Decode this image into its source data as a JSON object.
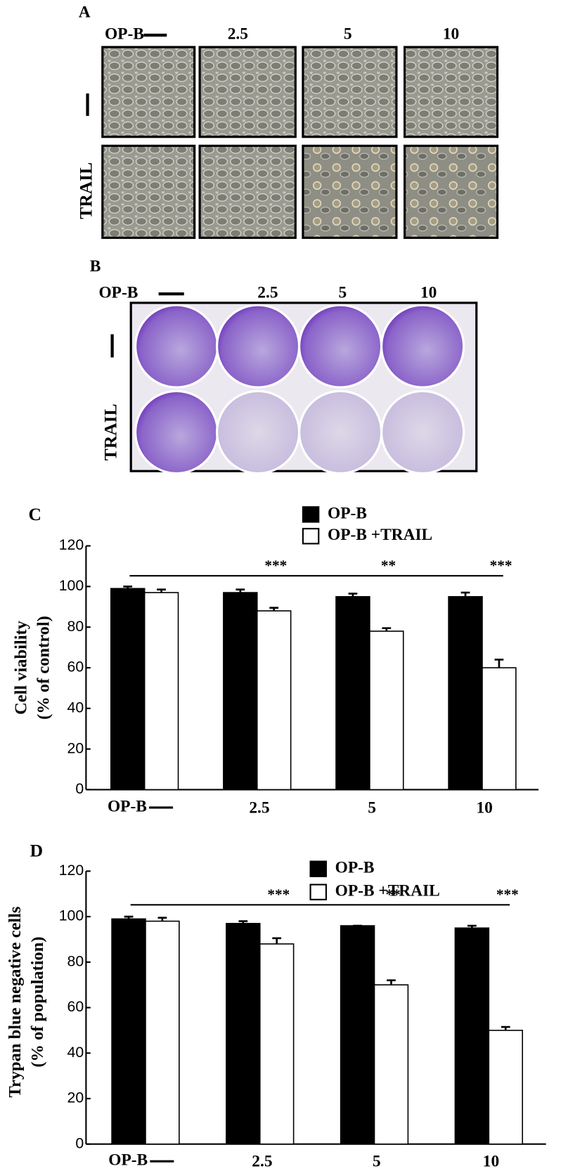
{
  "panel_a": {
    "label": "A",
    "treatment": "OP-B",
    "doses": [
      "2.5",
      "5",
      "10"
    ],
    "row_label": "TRAIL"
  },
  "panel_b": {
    "label": "B",
    "treatment": "OP-B",
    "doses": [
      "2.5",
      "5",
      "10"
    ],
    "row_label": "TRAIL"
  },
  "chart_data": [
    {
      "type": "bar",
      "label": "C",
      "ylabel": [
        "Cell viability",
        "(% of control)"
      ],
      "xlabel": "OP-B",
      "categories": [
        null,
        "2.5",
        "5",
        "10"
      ],
      "series": [
        {
          "name": "OP-B",
          "color": "#000000",
          "values": [
            99,
            97,
            95,
            95
          ],
          "errors": [
            1,
            1.5,
            1.5,
            2
          ]
        },
        {
          "name": "OP-B +TRAIL",
          "color": "#ffffff",
          "values": [
            97,
            88,
            78,
            60
          ],
          "errors": [
            1.5,
            1.5,
            1.5,
            4
          ]
        }
      ],
      "significance": [
        null,
        "***",
        "**",
        "***"
      ],
      "ylim": [
        0,
        120
      ],
      "yticks": [
        0,
        20,
        40,
        60,
        80,
        100,
        120
      ],
      "grid": false
    },
    {
      "type": "bar",
      "label": "D",
      "ylabel": [
        "Trypan blue negative cells",
        "(% of population)"
      ],
      "xlabel": "OP-B",
      "categories": [
        null,
        "2.5",
        "5",
        "10"
      ],
      "series": [
        {
          "name": "OP-B",
          "color": "#000000",
          "values": [
            99,
            97,
            96,
            95
          ],
          "errors": [
            1,
            1,
            0,
            1
          ]
        },
        {
          "name": "OP-B +TRAIL",
          "color": "#ffffff",
          "values": [
            98,
            88,
            70,
            50
          ],
          "errors": [
            1.5,
            2.5,
            2,
            1.5
          ]
        }
      ],
      "significance": [
        null,
        "***",
        "**",
        "***"
      ],
      "ylim": [
        0,
        120
      ],
      "yticks": [
        0,
        20,
        40,
        60,
        80,
        100,
        120
      ],
      "grid": false
    }
  ]
}
